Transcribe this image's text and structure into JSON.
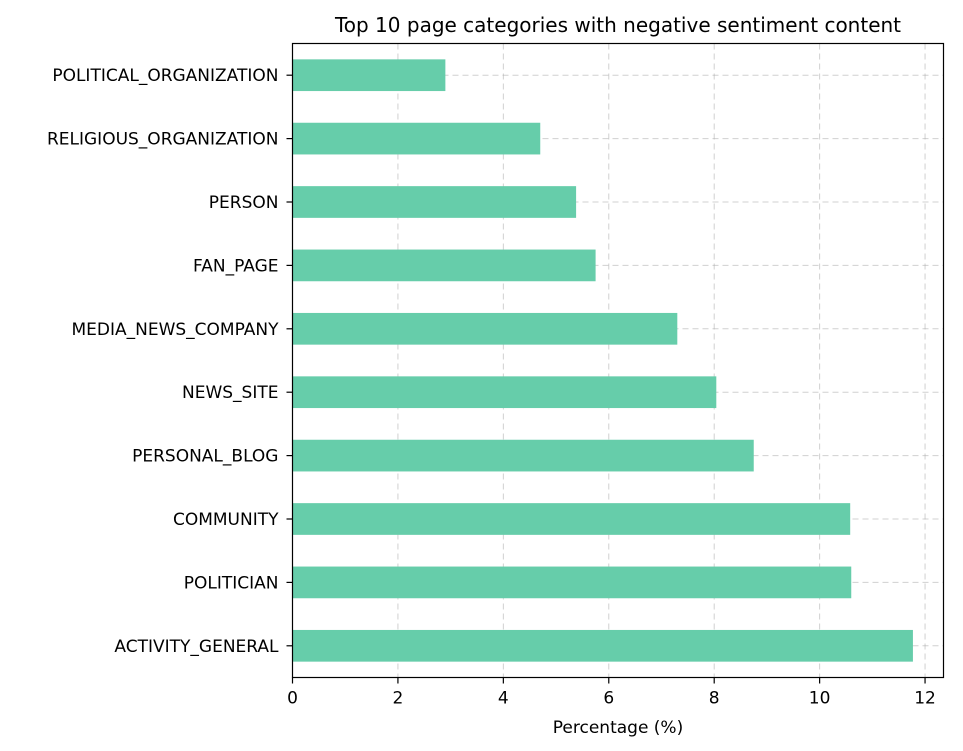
{
  "chart_data": {
    "type": "bar",
    "orientation": "horizontal",
    "title": "Top 10 page categories with negative sentiment content",
    "xlabel": "Percentage (%)",
    "ylabel": "",
    "xlim": [
      0,
      12.35
    ],
    "xticks": [
      0,
      2,
      4,
      6,
      8,
      10,
      12
    ],
    "grid": true,
    "bar_color": "#66cdaa",
    "categories": [
      "POLITICAL_ORGANIZATION",
      "RELIGIOUS_ORGANIZATION",
      "PERSON",
      "FAN_PAGE",
      "MEDIA_NEWS_COMPANY",
      "NEWS_SITE",
      "PERSONAL_BLOG",
      "COMMUNITY",
      "POLITICIAN",
      "ACTIVITY_GENERAL"
    ],
    "values": [
      2.9,
      4.7,
      5.38,
      5.75,
      7.3,
      8.04,
      8.75,
      10.58,
      10.6,
      11.77
    ]
  }
}
